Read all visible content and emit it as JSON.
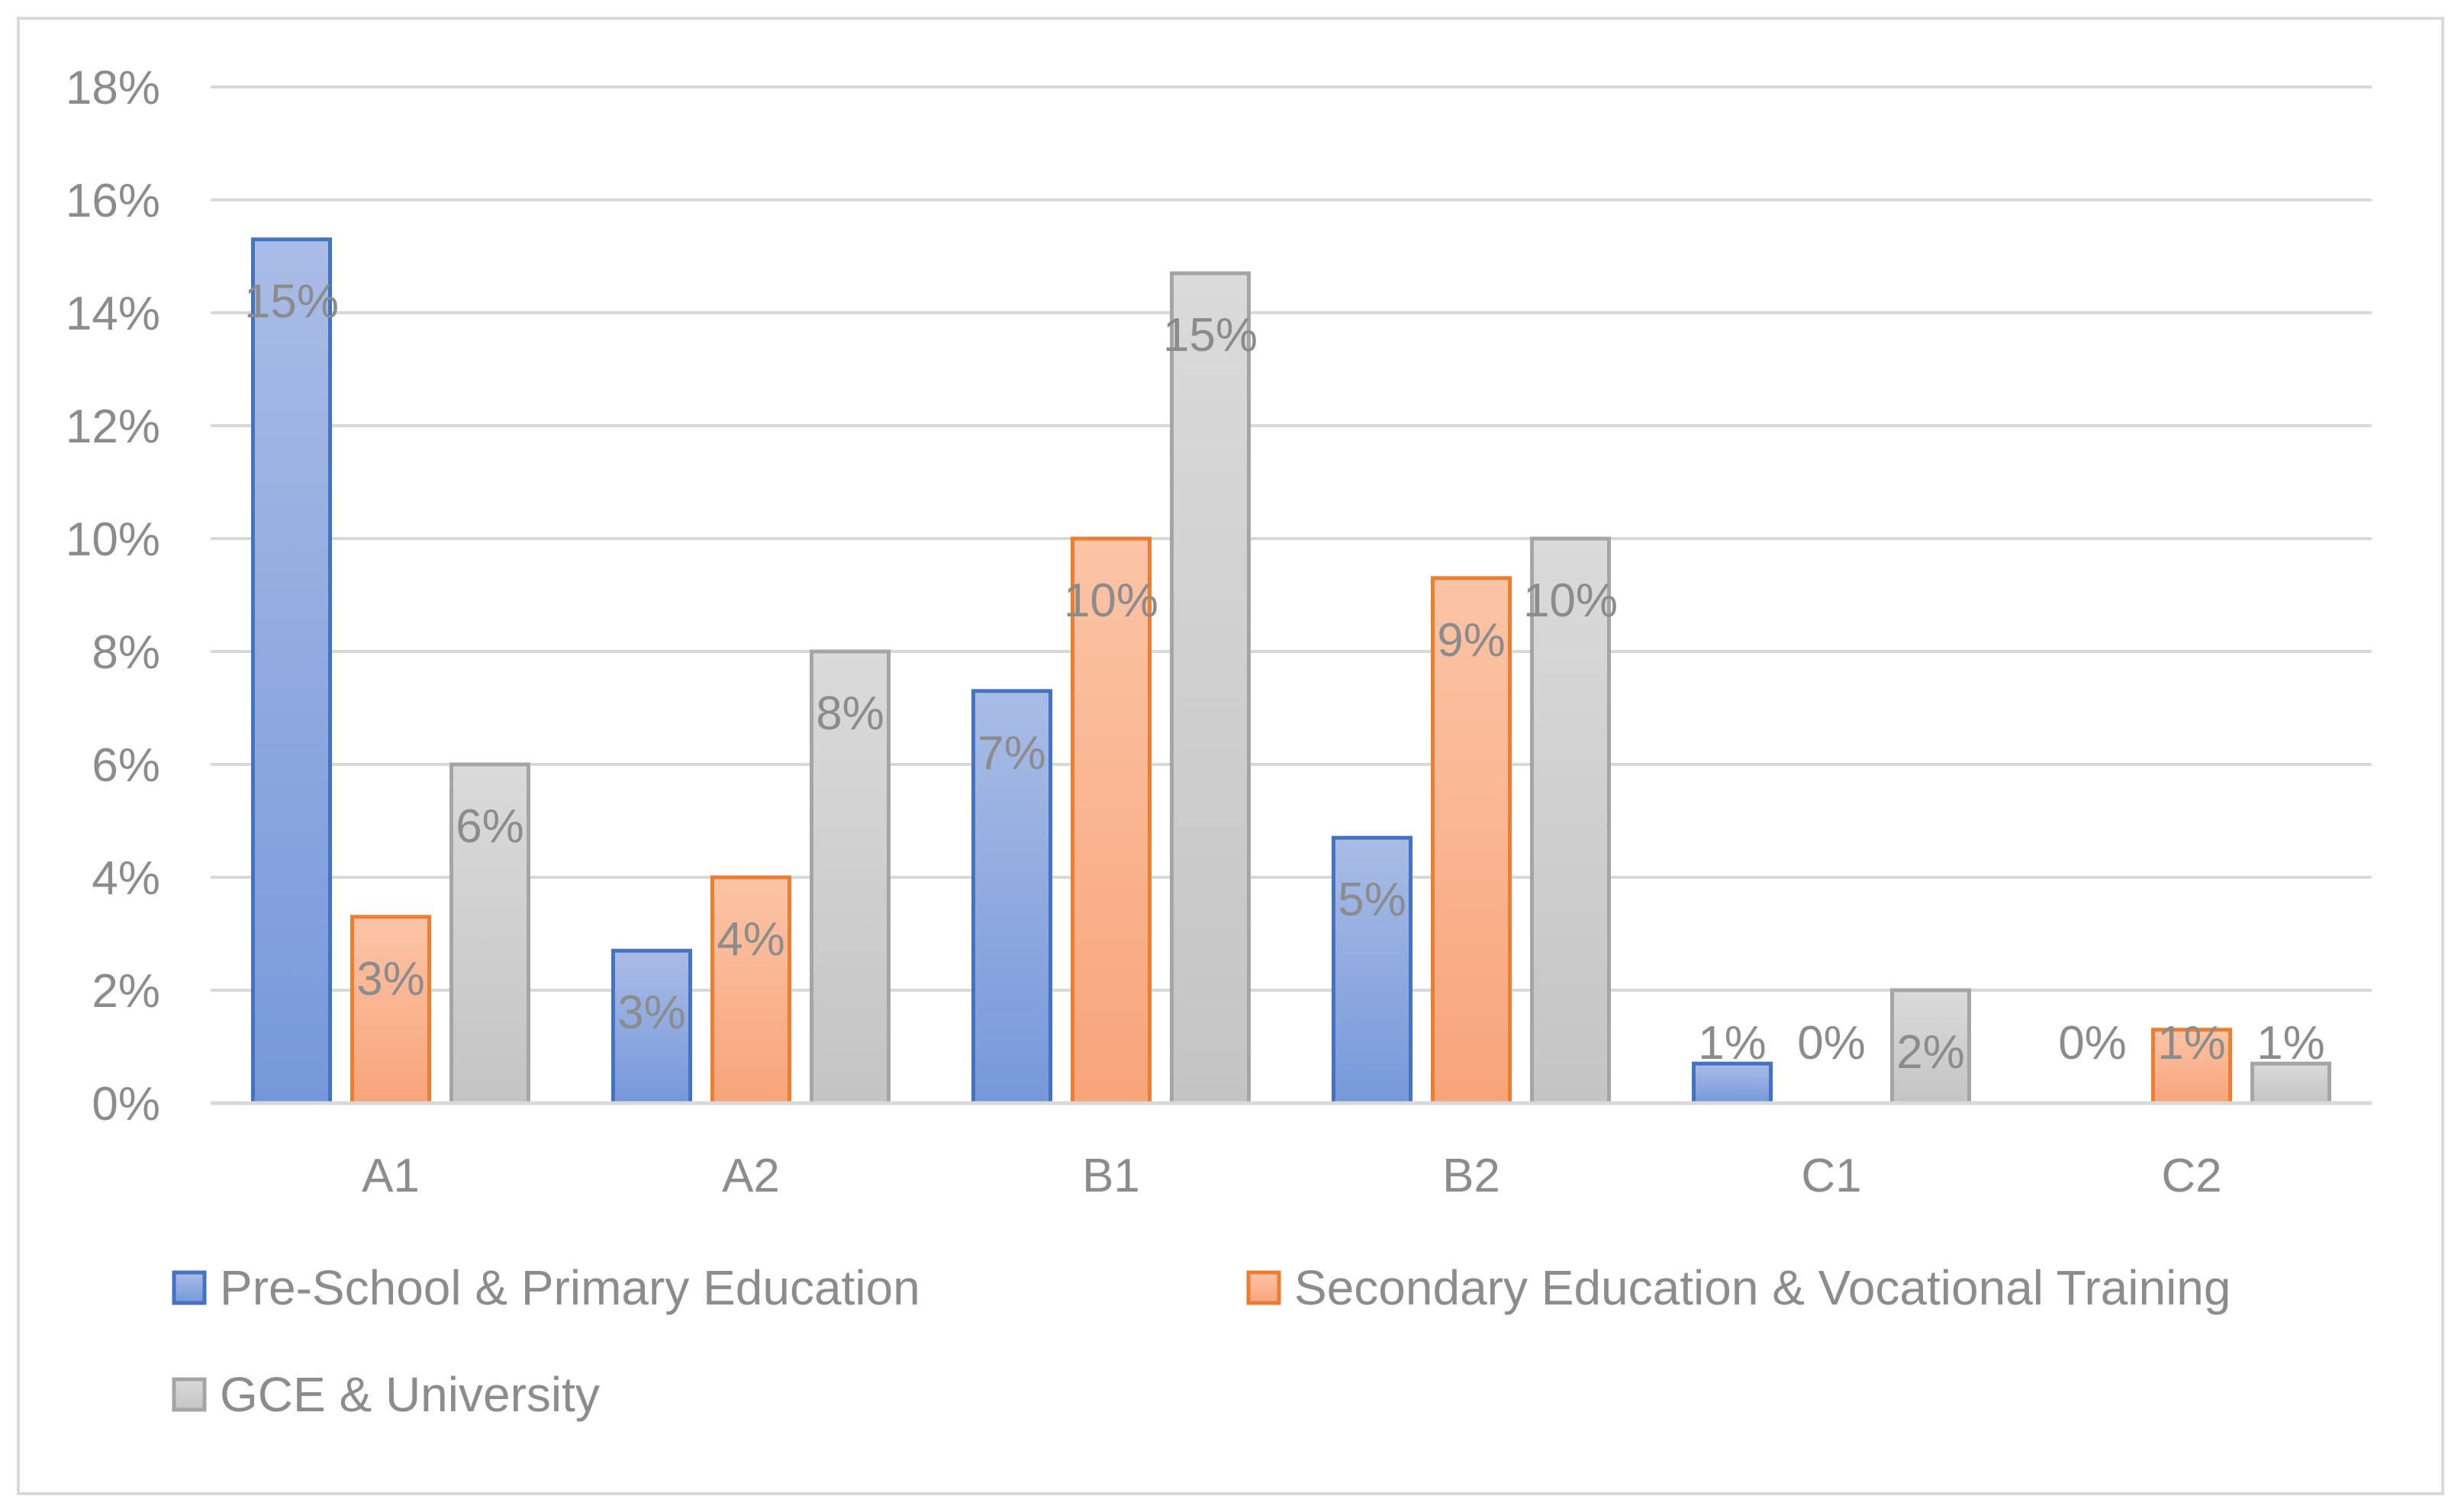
{
  "chart_data": {
    "type": "bar",
    "title": "",
    "xlabel": "",
    "ylabel": "",
    "ylim": [
      0,
      18
    ],
    "yticks": [
      "0%",
      "2%",
      "4%",
      "6%",
      "8%",
      "10%",
      "12%",
      "14%",
      "16%",
      "18%"
    ],
    "grid": true,
    "legend_position": "bottom",
    "categories": [
      "A1",
      "A2",
      "B1",
      "B2",
      "C1",
      "C2"
    ],
    "series": [
      {
        "name": "Pre-School & Primary Education",
        "color": "#4472c4",
        "fill_top": "#a9bce6",
        "fill_bottom": "#7698da",
        "values": [
          15.3,
          2.7,
          7.3,
          4.7,
          0.7,
          0
        ],
        "labels": [
          "15%",
          "3%",
          "7%",
          "5%",
          "1%",
          "0%"
        ]
      },
      {
        "name": "Secondary Education & Vocational Training",
        "color": "#ed7d31",
        "fill_top": "#fbc4a6",
        "fill_bottom": "#f8a47a",
        "values": [
          3.3,
          4.0,
          10.0,
          9.3,
          0,
          1.3
        ],
        "labels": [
          "3%",
          "4%",
          "10%",
          "9%",
          "0%",
          "1%"
        ]
      },
      {
        "name": "GCE & University",
        "color": "#a5a5a5",
        "fill_top": "#dadada",
        "fill_bottom": "#c4c4c4",
        "values": [
          6.0,
          8.0,
          14.7,
          10.0,
          2.0,
          0.7
        ],
        "labels": [
          "6%",
          "8%",
          "15%",
          "10%",
          "2%",
          "1%"
        ]
      }
    ]
  }
}
